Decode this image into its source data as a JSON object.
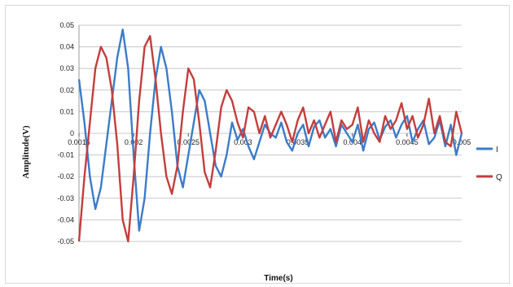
{
  "chart_data": {
    "type": "line",
    "xlabel": "Time(s)",
    "ylabel": "Amplitude(V)",
    "xlim": [
      0.0015,
      0.005
    ],
    "ylim": [
      -0.05,
      0.05
    ],
    "y_ticks": [
      "-0.05",
      "-0.04",
      "-0.03",
      "-0.02",
      "-0.01",
      "0",
      "0.01",
      "0.02",
      "0.03",
      "0.04",
      "0.05"
    ],
    "x_ticks": [
      "0.0015",
      "0.002",
      "0.0025",
      "0.003",
      "0.0035",
      "0.004",
      "0.0045",
      "0.005"
    ],
    "grid": "horizontal",
    "legend": "right",
    "series": [
      {
        "name": "I",
        "color": "#3b7cc9",
        "x": [
          0.0015,
          0.00155,
          0.0016,
          0.00165,
          0.0017,
          0.00175,
          0.0018,
          0.00185,
          0.0019,
          0.00195,
          0.002,
          0.00205,
          0.0021,
          0.00215,
          0.0022,
          0.00225,
          0.0023,
          0.00235,
          0.0024,
          0.00245,
          0.0025,
          0.00255,
          0.0026,
          0.00265,
          0.0027,
          0.00275,
          0.0028,
          0.00285,
          0.0029,
          0.00295,
          0.003,
          0.00305,
          0.0031,
          0.00315,
          0.0032,
          0.00325,
          0.0033,
          0.00335,
          0.0034,
          0.00345,
          0.0035,
          0.00355,
          0.0036,
          0.00365,
          0.0037,
          0.00375,
          0.0038,
          0.00385,
          0.0039,
          0.00395,
          0.004,
          0.00405,
          0.0041,
          0.00415,
          0.0042,
          0.00425,
          0.0043,
          0.00435,
          0.0044,
          0.00445,
          0.0045,
          0.00455,
          0.0046,
          0.00465,
          0.0047,
          0.00475,
          0.0048,
          0.00485,
          0.0049,
          0.00495,
          0.005
        ],
        "values": [
          0.025,
          0.005,
          -0.02,
          -0.035,
          -0.025,
          -0.005,
          0.015,
          0.035,
          0.048,
          0.03,
          -0.01,
          -0.045,
          -0.03,
          0.0,
          0.025,
          0.04,
          0.03,
          0.01,
          -0.015,
          -0.025,
          -0.01,
          0.005,
          0.02,
          0.015,
          0.0,
          -0.015,
          -0.02,
          -0.01,
          0.005,
          -0.003,
          0.002,
          -0.006,
          -0.012,
          -0.004,
          0.004,
          0.0,
          -0.002,
          0.005,
          -0.004,
          -0.008,
          0.0,
          0.004,
          -0.006,
          0.003,
          0.006,
          -0.002,
          0.002,
          -0.006,
          0.004,
          0.0,
          -0.004,
          0.004,
          -0.008,
          0.002,
          0.005,
          -0.003,
          0.003,
          0.006,
          -0.002,
          0.004,
          0.008,
          -0.004,
          0.002,
          0.006,
          -0.005,
          -0.002,
          0.006,
          -0.006,
          0.004,
          -0.01,
          0.0
        ]
      },
      {
        "name": "Q",
        "color": "#c43d3d",
        "x": [
          0.0015,
          0.00155,
          0.0016,
          0.00165,
          0.0017,
          0.00175,
          0.0018,
          0.00185,
          0.0019,
          0.00195,
          0.002,
          0.00205,
          0.0021,
          0.00215,
          0.0022,
          0.00225,
          0.0023,
          0.00235,
          0.0024,
          0.00245,
          0.0025,
          0.00255,
          0.0026,
          0.00265,
          0.0027,
          0.00275,
          0.0028,
          0.00285,
          0.0029,
          0.00295,
          0.003,
          0.00305,
          0.0031,
          0.00315,
          0.0032,
          0.00325,
          0.0033,
          0.00335,
          0.0034,
          0.00345,
          0.0035,
          0.00355,
          0.0036,
          0.00365,
          0.0037,
          0.00375,
          0.0038,
          0.00385,
          0.0039,
          0.00395,
          0.004,
          0.00405,
          0.0041,
          0.00415,
          0.0042,
          0.00425,
          0.0043,
          0.00435,
          0.0044,
          0.00445,
          0.0045,
          0.00455,
          0.0046,
          0.00465,
          0.0047,
          0.00475,
          0.0048,
          0.00485,
          0.0049,
          0.00495,
          0.005
        ],
        "values": [
          -0.05,
          -0.02,
          0.005,
          0.03,
          0.04,
          0.035,
          0.02,
          -0.005,
          -0.04,
          -0.05,
          -0.02,
          0.015,
          0.04,
          0.045,
          0.025,
          0.0,
          -0.02,
          -0.028,
          -0.015,
          0.01,
          0.03,
          0.025,
          0.005,
          -0.018,
          -0.025,
          -0.008,
          0.012,
          0.02,
          0.015,
          0.005,
          -0.002,
          0.012,
          0.01,
          0.0,
          0.008,
          -0.002,
          0.004,
          0.01,
          0.004,
          -0.004,
          0.006,
          0.012,
          0.0,
          0.006,
          -0.002,
          0.004,
          0.01,
          -0.004,
          0.006,
          0.002,
          0.004,
          0.012,
          -0.004,
          0.006,
          0.0,
          -0.004,
          0.008,
          0.002,
          0.006,
          0.014,
          0.002,
          0.008,
          -0.002,
          0.004,
          0.016,
          0.0,
          0.008,
          -0.004,
          -0.006,
          0.01,
          0.0
        ]
      }
    ]
  }
}
